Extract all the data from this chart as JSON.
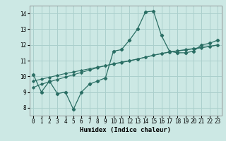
{
  "x": [
    0,
    1,
    2,
    3,
    4,
    5,
    6,
    7,
    8,
    9,
    10,
    11,
    12,
    13,
    14,
    15,
    16,
    17,
    18,
    19,
    20,
    21,
    22,
    23
  ],
  "y_main": [
    10.1,
    9.0,
    9.7,
    8.9,
    9.0,
    7.9,
    9.0,
    9.5,
    9.7,
    9.9,
    11.6,
    11.7,
    12.3,
    13.0,
    14.1,
    14.15,
    12.6,
    11.6,
    11.5,
    11.5,
    11.6,
    12.0,
    12.1,
    12.3
  ],
  "y_trend1": [
    9.3,
    9.5,
    9.65,
    9.8,
    9.95,
    10.1,
    10.25,
    10.4,
    10.55,
    10.68,
    10.8,
    10.9,
    11.0,
    11.1,
    11.22,
    11.34,
    11.46,
    11.55,
    11.63,
    11.7,
    11.77,
    11.84,
    11.91,
    12.0
  ],
  "y_trend2": [
    9.7,
    9.82,
    9.94,
    10.06,
    10.18,
    10.28,
    10.38,
    10.48,
    10.58,
    10.68,
    10.78,
    10.88,
    10.98,
    11.1,
    11.22,
    11.34,
    11.44,
    11.54,
    11.61,
    11.68,
    11.75,
    11.82,
    11.9,
    11.98
  ],
  "line_color": "#2a6e64",
  "bg_color": "#cce8e4",
  "grid_color": "#aacfcc",
  "xlabel": "Humidex (Indice chaleur)",
  "ylim": [
    7.5,
    14.5
  ],
  "xlim": [
    -0.5,
    23.5
  ],
  "yticks": [
    8,
    9,
    10,
    11,
    12,
    13,
    14
  ],
  "xticks": [
    0,
    1,
    2,
    3,
    4,
    5,
    6,
    7,
    8,
    9,
    10,
    11,
    12,
    13,
    14,
    15,
    16,
    17,
    18,
    19,
    20,
    21,
    22,
    23
  ],
  "label_fontsize": 6.5,
  "tick_fontsize": 5.5
}
